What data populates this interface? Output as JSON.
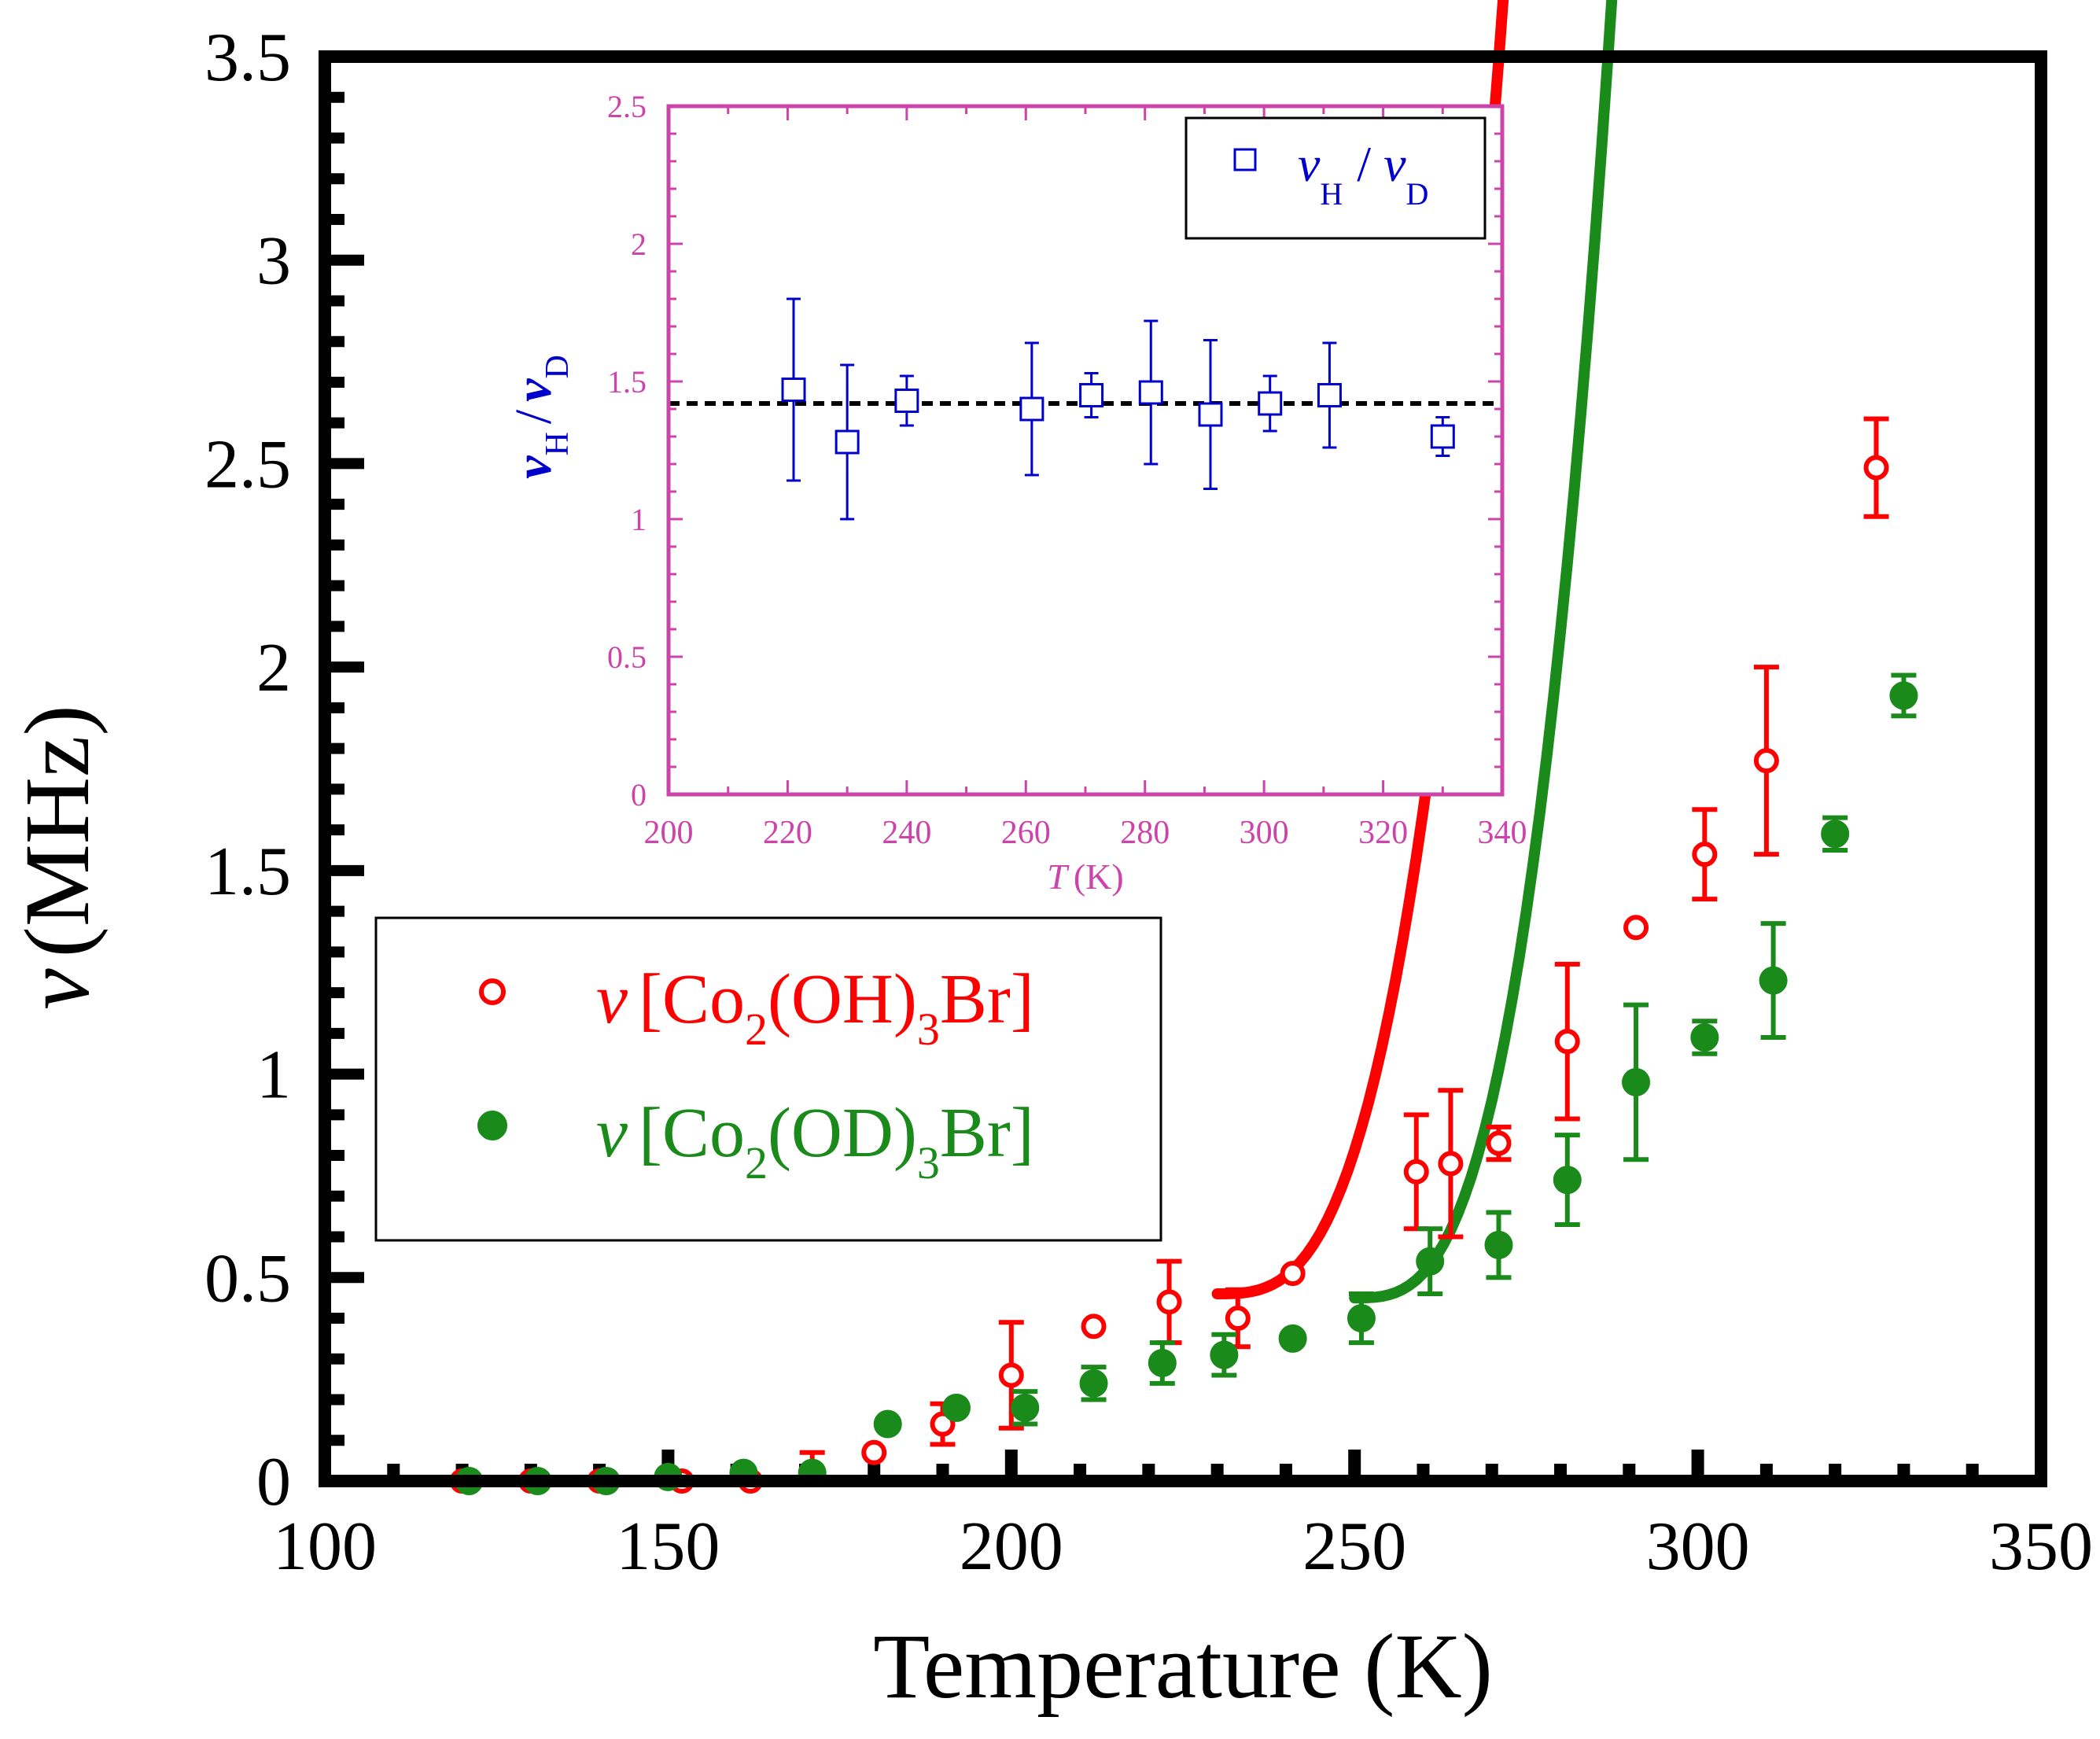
{
  "chart_data": [
    {
      "type": "scatter",
      "xlabel": "Temperature (K)",
      "ylabel_symbol": "ν",
      "ylabel_unit": "(MHz)",
      "xlim": [
        100,
        350
      ],
      "ylim": [
        0,
        3.5
      ],
      "xticks": [
        100,
        150,
        200,
        250,
        300,
        350
      ],
      "xtick_labels": [
        "100",
        "150",
        "200",
        "250",
        "300",
        "350"
      ],
      "yticks": [
        0,
        0.5,
        1,
        1.5,
        2,
        2.5,
        3,
        3.5
      ],
      "ytick_labels": [
        "0",
        "0.5",
        "1",
        "1.5",
        "2",
        "2.5",
        "3",
        "3.5"
      ],
      "legend": {
        "placement": "center-left",
        "entries": [
          {
            "prefix": "ν",
            "text_a": "[Co",
            "sub_a": "2",
            "text_b": "(OH)",
            "sub_b": "3",
            "text_c": "Br]",
            "color": "#ff0000",
            "marker": "open-circle"
          },
          {
            "prefix": "ν",
            "text_a": "[Co",
            "sub_a": "2",
            "text_b": "(OD)",
            "sub_b": "3",
            "text_c": "Br]",
            "color": "#1a8a1a",
            "marker": "filled-circle"
          }
        ]
      },
      "series": [
        {
          "marker": "open-circle",
          "color": "#ff0000",
          "x": [
            120,
            130,
            140,
            152,
            162,
            171,
            180,
            190,
            200,
            212,
            223,
            233,
            241,
            259,
            264,
            271,
            281,
            291,
            301,
            310,
            326
          ],
          "y": [
            0.0,
            0.0,
            0.0,
            0.0,
            0.0,
            0.02,
            0.07,
            0.14,
            0.26,
            0.38,
            0.44,
            0.4,
            0.51,
            0.76,
            0.78,
            0.83,
            1.08,
            1.36,
            1.54,
            1.77,
            2.49
          ],
          "err": [
            0.02,
            0.02,
            0.02,
            0.02,
            0.02,
            0.05,
            0.03,
            0.05,
            0.13,
            0.02,
            0.1,
            0.07,
            0.03,
            0.14,
            0.18,
            0.04,
            0.19,
            0.02,
            0.11,
            0.23,
            0.12
          ],
          "fit": {
            "x0": 230,
            "x1": 340,
            "y0": 0.46,
            "a": 4.4e-05,
            "p": 3
          }
        },
        {
          "marker": "filled-circle",
          "color": "#1a8a1a",
          "x": [
            121,
            131,
            141,
            150,
            161,
            171,
            182,
            192,
            202,
            212,
            222,
            231,
            241,
            251,
            261,
            271,
            281,
            291,
            301,
            311,
            320,
            330
          ],
          "y": [
            0.0,
            0.0,
            0.0,
            0.01,
            0.02,
            0.02,
            0.14,
            0.18,
            0.18,
            0.24,
            0.29,
            0.31,
            0.35,
            0.4,
            0.54,
            0.58,
            0.74,
            0.98,
            1.09,
            1.23,
            1.59,
            1.93
          ],
          "err": [
            0.01,
            0.01,
            0.01,
            0.02,
            0.02,
            0.03,
            0.02,
            0.03,
            0.04,
            0.04,
            0.05,
            0.05,
            0.02,
            0.06,
            0.08,
            0.08,
            0.11,
            0.19,
            0.04,
            0.14,
            0.04,
            0.05
          ],
          "fit": {
            "x0": 250,
            "x1": 340,
            "y0": 0.45,
            "a": 6.06e-05,
            "p": 3
          }
        }
      ]
    },
    {
      "type": "scatter",
      "xlabel_symbol": "T",
      "xlabel_unit": "(K)",
      "ylabel_a": "ν",
      "ylabel_sub_a": "H",
      "ylabel_sep": "/",
      "ylabel_b": "ν",
      "ylabel_sub_b": "D",
      "xlim": [
        200,
        340
      ],
      "ylim": [
        0,
        2.5
      ],
      "xticks": [
        200,
        220,
        240,
        260,
        280,
        300,
        320,
        340
      ],
      "xtick_labels": [
        "200",
        "220",
        "240",
        "260",
        "280",
        "300",
        "320",
        "340"
      ],
      "yticks": [
        0,
        0.5,
        1,
        1.5,
        2,
        2.5
      ],
      "ytick_labels": [
        "0",
        "0.5",
        "1",
        "1.5",
        "2",
        "2.5"
      ],
      "legend": {
        "placement": "top-right",
        "entries": [
          {
            "a": "ν",
            "sub_a": "H",
            "sep": "/",
            "b": "ν",
            "sub_b": "D",
            "color": "#0000cc",
            "marker": "open-square"
          }
        ]
      },
      "reference_line": {
        "y": 1.42,
        "style": "dashed",
        "color": "#000000"
      },
      "series": [
        {
          "marker": "open-square",
          "color": "#0000cc",
          "x": [
            221,
            230,
            240,
            261,
            271,
            281,
            291,
            301,
            311,
            330
          ],
          "y": [
            1.47,
            1.28,
            1.43,
            1.4,
            1.45,
            1.46,
            1.38,
            1.42,
            1.45,
            1.3
          ],
          "err": [
            0.33,
            0.28,
            0.09,
            0.24,
            0.08,
            0.26,
            0.27,
            0.1,
            0.19,
            0.07
          ]
        }
      ]
    }
  ]
}
